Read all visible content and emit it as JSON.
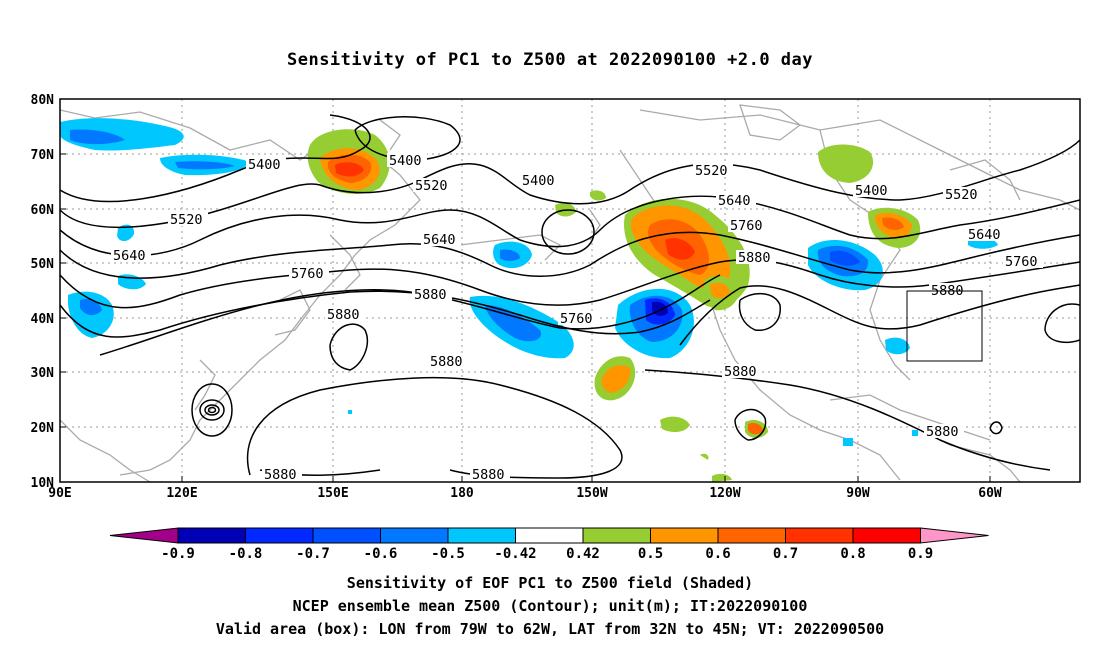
{
  "title": "Sensitivity of PC1 to Z500 at 2022090100 +2.0 day",
  "lat_labels": [
    "80N",
    "70N",
    "60N",
    "50N",
    "40N",
    "30N",
    "20N",
    "10N"
  ],
  "lon_labels": [
    "90E",
    "120E",
    "150E",
    "180",
    "150W",
    "120W",
    "90W",
    "60W"
  ],
  "contour_labels": [
    "5400",
    "5400",
    "5400",
    "5400",
    "5520",
    "5520",
    "5520",
    "5520",
    "5640",
    "5640",
    "5640",
    "5640",
    "5760",
    "5760",
    "5760",
    "5760",
    "5880",
    "5880",
    "5880",
    "5880",
    "5880",
    "5880",
    "5880",
    "5880"
  ],
  "colorbar": {
    "labels": [
      "-0.9",
      "-0.8",
      "-0.7",
      "-0.6",
      "-0.5",
      "-0.42",
      "0.42",
      "0.5",
      "0.6",
      "0.7",
      "0.8",
      "0.9"
    ],
    "colors": [
      "#a3008a",
      "#0000b4",
      "#0028ff",
      "#0050ff",
      "#0078ff",
      "#00c8ff",
      "#ffffff",
      "#96cd32",
      "#ff9600",
      "#ff6400",
      "#ff3200",
      "#ff0000",
      "#ff96c8"
    ]
  },
  "box": {
    "lon_from": "79W",
    "lon_to": "62W",
    "lat_from": "32N",
    "lat_to": "45N"
  },
  "captions": {
    "line1": "Sensitivity of EOF PC1 to Z500 field (Shaded)",
    "line2": "NCEP ensemble mean Z500 (Contour); unit(m); IT:2022090100",
    "line3": "Valid area (box): LON from 79W to 62W, LAT from 32N to 45N; VT: 2022090500"
  }
}
